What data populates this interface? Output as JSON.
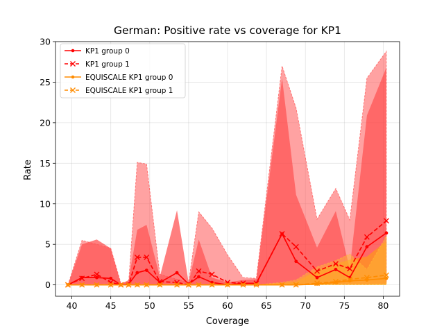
{
  "chart_data": {
    "type": "line",
    "title": "German: Positive rate vs coverage for KP1",
    "xlabel": "Coverage",
    "ylabel": "Rate",
    "xlim": [
      37.9,
      82.1
    ],
    "ylim": [
      -1.4,
      30
    ],
    "xticks": [
      40,
      45,
      50,
      55,
      60,
      65,
      70,
      75,
      80
    ],
    "yticks": [
      0,
      5,
      10,
      15,
      20,
      25,
      30
    ],
    "grid": true,
    "legend_position": "top-left",
    "x": [
      39.5,
      41.3,
      43.2,
      45.0,
      46.3,
      47.3,
      48.4,
      49.6,
      51.3,
      53.5,
      55.0,
      56.3,
      58.0,
      60.0,
      62.0,
      63.7,
      67.0,
      68.8,
      71.5,
      73.9,
      75.7,
      77.9,
      80.4
    ],
    "series": [
      {
        "name": "KP1 group 0",
        "style": "solid",
        "marker": "dot",
        "color": "#ff0000",
        "values": [
          0,
          0.9,
          0.9,
          0.8,
          0,
          0.1,
          1.5,
          1.8,
          0.3,
          1.5,
          0.1,
          1.0,
          0.3,
          0,
          0.2,
          0.2,
          6.3,
          2.9,
          0.9,
          1.9,
          0.9,
          4.7,
          6.4
        ],
        "band_lower": [
          0,
          0.1,
          0.1,
          0.1,
          0,
          0,
          0.1,
          0.1,
          0,
          0.1,
          0,
          0.1,
          0,
          0,
          0,
          0,
          0.1,
          0.1,
          0.1,
          0.1,
          0.1,
          0.1,
          0.1
        ],
        "band_upper": [
          0,
          5.0,
          5.6,
          4.5,
          0.1,
          0.6,
          6.8,
          7.4,
          1.0,
          9.2,
          0.3,
          5.6,
          0.9,
          0.3,
          0.6,
          0.7,
          25.5,
          11.1,
          4.6,
          9.1,
          2.0,
          20.9,
          26.8
        ],
        "band_color": "#ff0000",
        "band_opacity": 0.5
      },
      {
        "name": "KP1 group 1",
        "style": "dashed",
        "marker": "x",
        "color": "#ff0000",
        "values": [
          0,
          0.8,
          1.3,
          0.3,
          0,
          0,
          3.4,
          3.4,
          0.4,
          0.3,
          0,
          1.7,
          1.3,
          0.3,
          0.2,
          0.2,
          6.3,
          4.7,
          1.7,
          2.6,
          2.0,
          5.9,
          7.9
        ],
        "band_lower": [
          0,
          0,
          0,
          0,
          0,
          0,
          0,
          0,
          0,
          0,
          0,
          0,
          0,
          0,
          0,
          0,
          0.1,
          0.1,
          0.1,
          0.1,
          0.1,
          0.1,
          0.2
        ],
        "band_upper": [
          0,
          5.5,
          5.0,
          4.5,
          0.2,
          0.4,
          15.1,
          14.9,
          1.3,
          0.7,
          0.3,
          9.0,
          7.0,
          3.7,
          0.9,
          0.8,
          27.0,
          21.8,
          8.1,
          11.9,
          8.0,
          25.5,
          28.8
        ],
        "band_color": "#ff5555",
        "band_opacity": 0.55
      },
      {
        "name": "EQUISCALE KP1 group 0",
        "style": "solid",
        "marker": "dot",
        "color": "#ff8c00",
        "values": [
          0,
          0,
          0,
          0,
          0,
          0,
          0,
          0,
          0,
          0,
          0,
          0,
          0,
          0,
          0,
          0,
          0,
          0,
          0.1,
          0.3,
          0.5,
          0.6,
          0.8
        ],
        "band_lower": [
          0,
          0,
          0,
          0,
          0,
          0,
          0,
          0,
          0,
          0,
          0,
          0,
          0,
          0,
          0,
          0,
          0,
          0,
          0,
          0,
          0,
          0,
          0
        ],
        "band_upper": [
          0,
          0,
          0,
          0,
          0,
          0,
          0,
          0,
          0,
          0,
          0,
          0,
          0,
          0,
          0,
          0,
          0.2,
          0.4,
          1.8,
          2.6,
          3.1,
          3.5,
          5.4
        ],
        "band_color": "#ffa500",
        "band_opacity": 0.55
      },
      {
        "name": "EQUISCALE KP1 group 1",
        "style": "dashed",
        "marker": "x",
        "color": "#ff8c00",
        "values": [
          0,
          0,
          0,
          0,
          0,
          0,
          0,
          0,
          0,
          0,
          0,
          0,
          0,
          0,
          0,
          0,
          0,
          0,
          0.2,
          0.4,
          0.7,
          0.9,
          1.2
        ],
        "band_lower": [
          0,
          0,
          0,
          0,
          0,
          0,
          0,
          0,
          0,
          0,
          0,
          0,
          0,
          0,
          0,
          0,
          0,
          0,
          0,
          0,
          0,
          0,
          0
        ],
        "band_upper": [
          0,
          0,
          0,
          0,
          0,
          0,
          0,
          0,
          0,
          0,
          0,
          0,
          0,
          0,
          0,
          0,
          0.3,
          0.6,
          2.2,
          3.0,
          3.8,
          1.9,
          6.0
        ],
        "band_color": "#ffb733",
        "band_opacity": 0.5
      }
    ]
  }
}
